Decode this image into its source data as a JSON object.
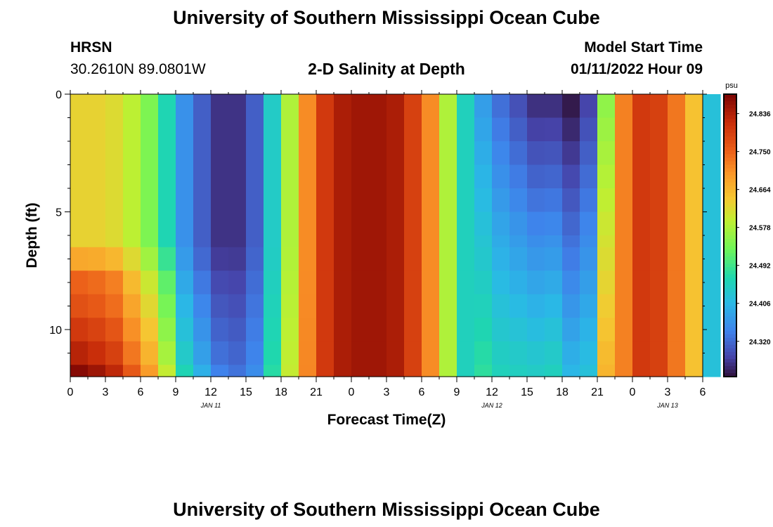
{
  "header": {
    "title": "University of Southern Mississippi Ocean Cube",
    "station_name": "HRSN",
    "station_coords": "30.2610N  89.0801W",
    "plot_title": "2-D Salinity at Depth",
    "model_start_label": "Model Start Time",
    "model_start_value": "01/11/2022 Hour 09"
  },
  "footer": {
    "title": "University of Southern Mississippi Ocean Cube"
  },
  "chart_data": {
    "type": "heatmap",
    "title": "2-D Salinity at Depth",
    "xlabel": "Forecast Time(Z)",
    "ylabel": "Depth (ft)",
    "x_hours_range": [
      0,
      54
    ],
    "y_range": [
      0,
      12
    ],
    "x_tick_labels": [
      "0",
      "3",
      "6",
      "9",
      "12",
      "15",
      "18",
      "21",
      "0",
      "3",
      "6",
      "9",
      "12",
      "15",
      "18",
      "21",
      "0",
      "3",
      "6"
    ],
    "y_tick_labels": [
      "0",
      "5",
      "10"
    ],
    "y_tick_values": [
      0,
      5,
      10
    ],
    "day_labels": [
      {
        "text": "JAN 11",
        "hour": 12
      },
      {
        "text": "JAN 12",
        "hour": 36
      },
      {
        "text": "JAN 13",
        "hour": 51
      }
    ],
    "colorbar": {
      "unit": "psu",
      "min": 24.24,
      "max": 24.88,
      "tick_values": [
        24.32,
        24.406,
        24.492,
        24.578,
        24.664,
        24.75,
        24.836
      ],
      "tick_labels": [
        "24.320",
        "24.406",
        "24.492",
        "24.578",
        "24.664",
        "24.750",
        "24.836"
      ]
    },
    "profile_hours": [
      0,
      1.5,
      3,
      4.5,
      6,
      7.5,
      9,
      10.5,
      12,
      13.5,
      15,
      16.5,
      18,
      19.5,
      21,
      22.5,
      24,
      25.5,
      27,
      28.5,
      30,
      31.5,
      33,
      34.5,
      36,
      37.5,
      39,
      40.5,
      42,
      43.5,
      45,
      46.5,
      48,
      49.5,
      51,
      52.5,
      54
    ],
    "surface_psu": [
      24.63,
      24.63,
      24.62,
      24.59,
      24.54,
      24.46,
      24.36,
      24.31,
      24.27,
      24.27,
      24.31,
      24.44,
      24.58,
      24.71,
      24.8,
      24.84,
      24.85,
      24.85,
      24.84,
      24.79,
      24.71,
      24.58,
      24.45,
      24.37,
      24.32,
      24.29,
      24.26,
      24.26,
      24.24,
      24.28,
      24.55,
      24.72,
      24.8,
      24.79,
      24.73,
      24.65,
      24.42
    ],
    "depth_layers": [
      {
        "depth_top": 0,
        "depth_bottom": 6.5,
        "anomaly_start": [
          0.0,
          0.0,
          0.0
        ]
      },
      {
        "depth_top": 6.5,
        "depth_bottom": 7.5,
        "anomaly_start": [
          0.05,
          0.04,
          0.02
        ]
      },
      {
        "depth_top": 7.5,
        "depth_bottom": 8.5,
        "anomaly_start": [
          0.12,
          0.09,
          0.05
        ]
      },
      {
        "depth_top": 8.5,
        "depth_bottom": 9.5,
        "anomaly_start": [
          0.14,
          0.12,
          0.08
        ]
      },
      {
        "depth_top": 9.5,
        "depth_bottom": 10.5,
        "anomaly_start": [
          0.17,
          0.15,
          0.11
        ]
      },
      {
        "depth_top": 10.5,
        "depth_bottom": 11.5,
        "anomaly_start": [
          0.2,
          0.18,
          0.14
        ]
      },
      {
        "depth_top": 11.5,
        "depth_bottom": 12,
        "anomaly_start": [
          0.24,
          0.22,
          0.18
        ]
      }
    ],
    "day2_depth_anomaly_per_ft": 0.0105
  }
}
